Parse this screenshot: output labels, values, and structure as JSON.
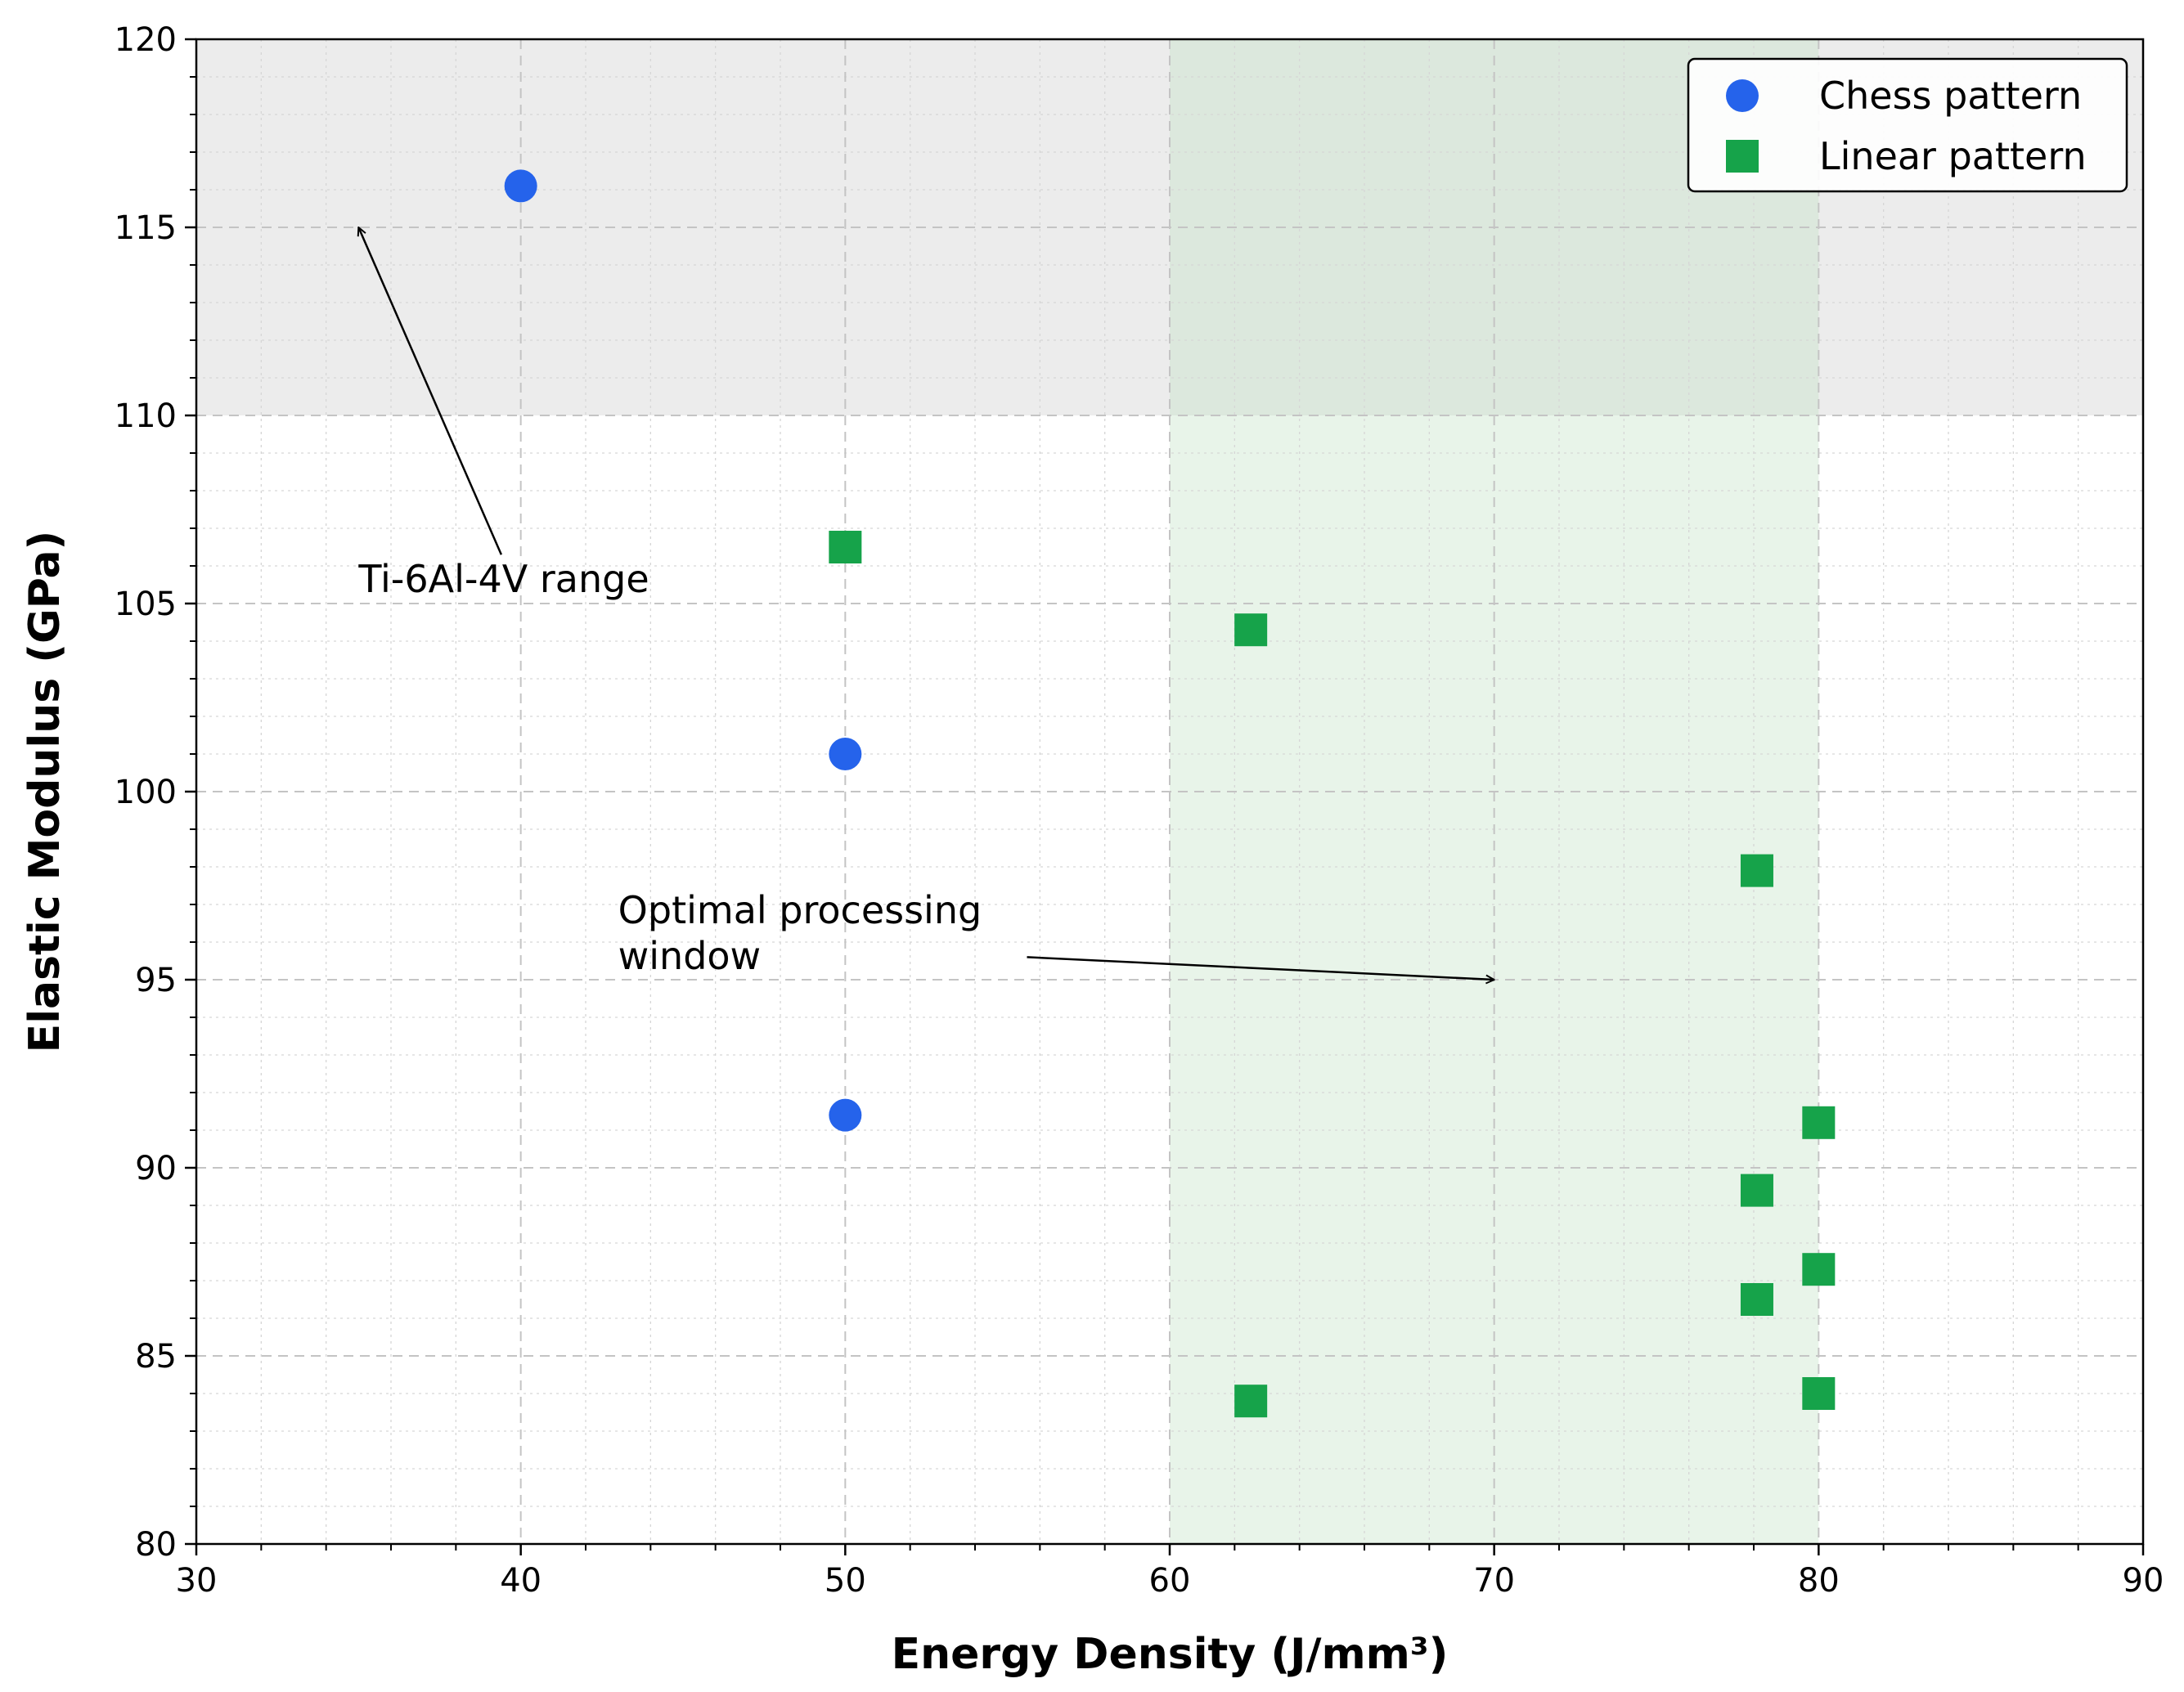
{
  "chart_data": {
    "type": "scatter",
    "title": "",
    "xlabel": "Energy Density (J/mm³)",
    "ylabel": "Elastic Modulus (GPa)",
    "xlim": [
      30,
      90
    ],
    "ylim": [
      80,
      120
    ],
    "xticks": [
      30,
      40,
      50,
      60,
      70,
      80,
      90
    ],
    "yticks": [
      80,
      85,
      90,
      95,
      100,
      105,
      110,
      115,
      120
    ],
    "grid": true,
    "legend_position": "top-right",
    "series": [
      {
        "name": "Chess pattern",
        "marker": "circle",
        "color": "#2563eb",
        "points": [
          {
            "x": 40,
            "y": 116.1
          },
          {
            "x": 50,
            "y": 101.0
          },
          {
            "x": 50,
            "y": 91.4
          }
        ]
      },
      {
        "name": "Linear pattern",
        "marker": "square",
        "color": "#16a34a",
        "points": [
          {
            "x": 50,
            "y": 106.5
          },
          {
            "x": 62.5,
            "y": 104.3
          },
          {
            "x": 78.1,
            "y": 97.9
          },
          {
            "x": 80,
            "y": 91.2
          },
          {
            "x": 78.1,
            "y": 89.4
          },
          {
            "x": 80,
            "y": 87.3
          },
          {
            "x": 78.1,
            "y": 86.5
          },
          {
            "x": 80,
            "y": 84.0
          },
          {
            "x": 62.5,
            "y": 83.8
          }
        ]
      }
    ],
    "regions": [
      {
        "name": "Ti-6Al-4V band",
        "y_range": [
          110,
          120
        ],
        "color": "#d4d4d4"
      },
      {
        "name": "Optimal processing window band",
        "x_range": [
          60,
          80
        ],
        "color": "#c6e3c8"
      }
    ],
    "annotations": [
      {
        "text": "Ti-6Al-4V range",
        "text_at": [
          35,
          105.3
        ],
        "arrow_to": [
          35,
          115
        ]
      },
      {
        "text": "Optimal processing\nwindow",
        "text_at": [
          43,
          96.5
        ],
        "arrow_to": [
          70,
          95
        ]
      }
    ]
  }
}
